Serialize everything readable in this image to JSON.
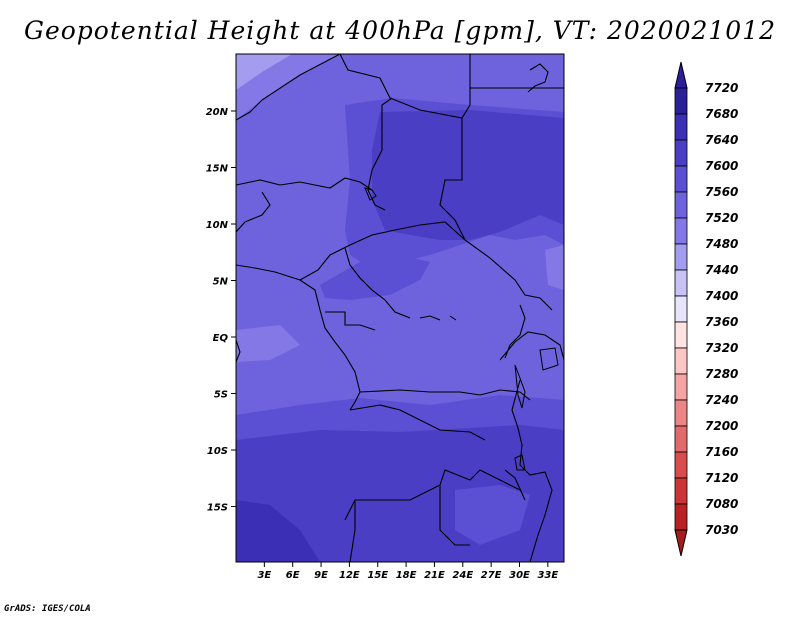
{
  "title": "Geopotential Height at 400hPa [gpm], VT: 2020021012",
  "credit": "GrADS: IGES/COLA",
  "map": {
    "lat_labels": [
      {
        "text": "20N",
        "lat": 20
      },
      {
        "text": "15N",
        "lat": 15
      },
      {
        "text": "10N",
        "lat": 10
      },
      {
        "text": "5N",
        "lat": 5
      },
      {
        "text": "EQ",
        "lat": 0
      },
      {
        "text": "5S",
        "lat": -5
      },
      {
        "text": "10S",
        "lat": -10
      },
      {
        "text": "15S",
        "lat": -15
      }
    ],
    "lon_labels": [
      {
        "text": "3E",
        "lon": 3
      },
      {
        "text": "6E",
        "lon": 6
      },
      {
        "text": "9E",
        "lon": 9
      },
      {
        "text": "12E",
        "lon": 12
      },
      {
        "text": "15E",
        "lon": 15
      },
      {
        "text": "18E",
        "lon": 18
      },
      {
        "text": "21E",
        "lon": 21
      },
      {
        "text": "24E",
        "lon": 24
      },
      {
        "text": "27E",
        "lon": 27
      },
      {
        "text": "30E",
        "lon": 30
      },
      {
        "text": "33E",
        "lon": 33
      }
    ]
  },
  "colorbar": {
    "levels": [
      {
        "label": "7720",
        "color": "#a000c8"
      },
      {
        "label": "7680",
        "color": "#2b1f9a"
      },
      {
        "label": "7640",
        "color": "#3b2fb5"
      },
      {
        "label": "7600",
        "color": "#4a3fc4"
      },
      {
        "label": "7560",
        "color": "#5b4fd3"
      },
      {
        "label": "7520",
        "color": "#6e63dd"
      },
      {
        "label": "7480",
        "color": "#8478e6"
      },
      {
        "label": "7440",
        "color": "#a49cef"
      },
      {
        "label": "7400",
        "color": "#c8c2f6"
      },
      {
        "label": "7360",
        "color": "#e8e4fc"
      },
      {
        "label": "7320",
        "color": "#ffe3e3"
      },
      {
        "label": "7280",
        "color": "#fcc6c6"
      },
      {
        "label": "7240",
        "color": "#f5a3a3"
      },
      {
        "label": "7200",
        "color": "#ec8585"
      },
      {
        "label": "7160",
        "color": "#e36a6a"
      },
      {
        "label": "7120",
        "color": "#d84c4c"
      },
      {
        "label": "7080",
        "color": "#cc3535"
      },
      {
        "label": "7030",
        "color": "#b82222"
      }
    ],
    "top_arrow_color": "#2b1f9a",
    "bottom_arrow_color": "#a51c1c"
  }
}
